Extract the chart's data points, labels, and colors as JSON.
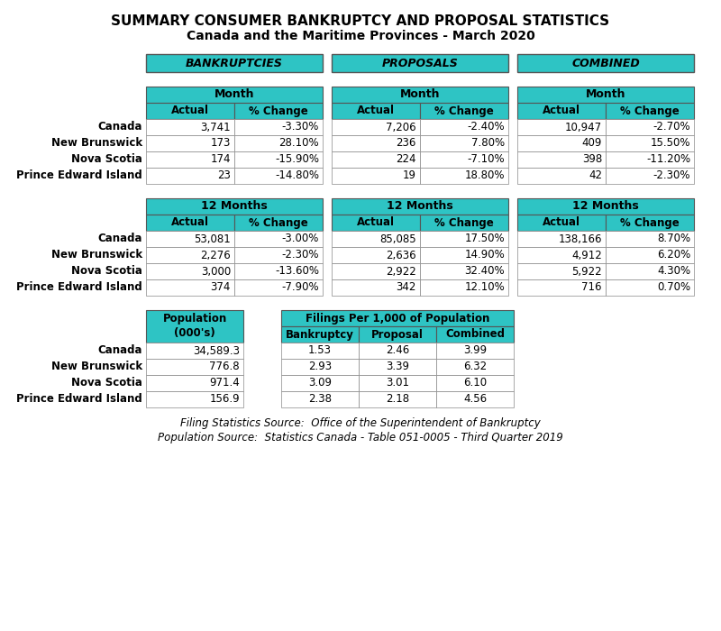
{
  "title1": "SUMMARY CONSUMER BANKRUPTCY AND PROPOSAL STATISTICS",
  "title2": "Canada and the Maritime Provinces - March 2020",
  "teal": "#2EC4C4",
  "white": "#FFFFFF",
  "black": "#000000",
  "bg": "#FFFFFF",
  "rows": [
    "Canada",
    "New Brunswick",
    "Nova Scotia",
    "Prince Edward Island"
  ],
  "section_headers": [
    "BANKRUPTCIES",
    "PROPOSALS",
    "COMBINED"
  ],
  "month_data": {
    "bankruptcies_actual": [
      "3,741",
      "173",
      "174",
      "23"
    ],
    "bankruptcies_pct": [
      "-3.30%",
      "28.10%",
      "-15.90%",
      "-14.80%"
    ],
    "proposals_actual": [
      "7,206",
      "236",
      "224",
      "19"
    ],
    "proposals_pct": [
      "-2.40%",
      "7.80%",
      "-7.10%",
      "18.80%"
    ],
    "combined_actual": [
      "10,947",
      "409",
      "398",
      "42"
    ],
    "combined_pct": [
      "-2.70%",
      "15.50%",
      "-11.20%",
      "-2.30%"
    ]
  },
  "months12_data": {
    "bankruptcies_actual": [
      "53,081",
      "2,276",
      "3,000",
      "374"
    ],
    "bankruptcies_pct": [
      "-3.00%",
      "-2.30%",
      "-13.60%",
      "-7.90%"
    ],
    "proposals_actual": [
      "85,085",
      "2,636",
      "2,922",
      "342"
    ],
    "proposals_pct": [
      "17.50%",
      "14.90%",
      "32.40%",
      "12.10%"
    ],
    "combined_actual": [
      "138,166",
      "4,912",
      "5,922",
      "716"
    ],
    "combined_pct": [
      "8.70%",
      "6.20%",
      "4.30%",
      "0.70%"
    ]
  },
  "population_data": {
    "population": [
      "34,589.3",
      "776.8",
      "971.4",
      "156.9"
    ],
    "bankruptcy_per1000": [
      "1.53",
      "2.93",
      "3.09",
      "2.38"
    ],
    "proposal_per1000": [
      "2.46",
      "3.39",
      "3.01",
      "2.18"
    ],
    "combined_per1000": [
      "3.99",
      "6.32",
      "6.10",
      "4.56"
    ]
  },
  "footer1": "Filing Statistics Source:  Office of the Superintendent of Bankruptcy",
  "footer2": "Population Source:  Statistics Canada - Table 051-0005 - Third Quarter 2019"
}
